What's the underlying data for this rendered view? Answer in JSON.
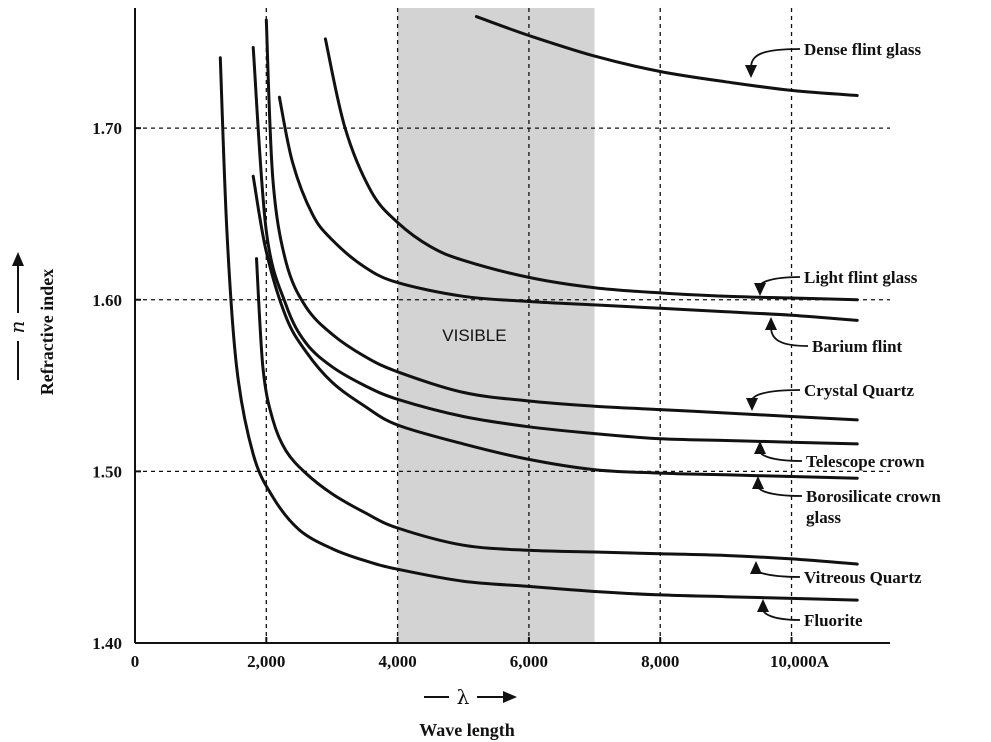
{
  "chart_data": {
    "type": "line",
    "xlabel": "Wave length",
    "xsymbol": "λ",
    "ylabel": "Refractive index",
    "ysymbol": "n",
    "xlim": [
      0,
      11500
    ],
    "ylim": [
      1.4,
      1.77
    ],
    "xticks": [
      {
        "value": 0,
        "label": "0"
      },
      {
        "value": 2000,
        "label": "2,000"
      },
      {
        "value": 4000,
        "label": "4,000"
      },
      {
        "value": 6000,
        "label": "6,000"
      },
      {
        "value": 8000,
        "label": "8,000"
      },
      {
        "value": 10000,
        "label": "10,000A"
      }
    ],
    "yticks": [
      {
        "value": 1.4,
        "label": "1.40"
      },
      {
        "value": 1.5,
        "label": "1.50"
      },
      {
        "value": 1.6,
        "label": "1.60"
      },
      {
        "value": 1.7,
        "label": "1.70"
      }
    ],
    "grid_x": [
      2000,
      4000,
      6000,
      8000,
      10000
    ],
    "grid_y": [
      1.5,
      1.6,
      1.7
    ],
    "visible_band": {
      "label": "VISIBLE",
      "from": 4000,
      "to": 7000,
      "color": "#d3d3d3"
    },
    "series": [
      {
        "name": "Dense flint glass",
        "x": [
          5200,
          6000,
          7000,
          8000,
          9000,
          10000,
          11000
        ],
        "y": [
          1.765,
          1.754,
          1.742,
          1.733,
          1.727,
          1.722,
          1.719
        ]
      },
      {
        "name": "Light flint glass",
        "x": [
          2900,
          3200,
          3600,
          4000,
          4500,
          5000,
          6000,
          7000,
          8000,
          9000,
          10000,
          11000
        ],
        "y": [
          1.752,
          1.7,
          1.663,
          1.645,
          1.631,
          1.623,
          1.613,
          1.607,
          1.604,
          1.602,
          1.601,
          1.6
        ]
      },
      {
        "name": "Barium flint",
        "x": [
          2200,
          2400,
          2700,
          3000,
          3500,
          4000,
          5000,
          6000,
          7000,
          8000,
          9000,
          10000,
          11000
        ],
        "y": [
          1.718,
          1.68,
          1.65,
          1.635,
          1.619,
          1.61,
          1.602,
          1.599,
          1.597,
          1.595,
          1.593,
          1.591,
          1.588
        ]
      },
      {
        "name": "Crystal Quartz",
        "x": [
          2000,
          2100,
          2300,
          2600,
          3000,
          3500,
          4000,
          5000,
          6000,
          7000,
          8000,
          9000,
          10000,
          11000
        ],
        "y": [
          1.763,
          1.67,
          1.622,
          1.596,
          1.58,
          1.567,
          1.558,
          1.546,
          1.541,
          1.538,
          1.536,
          1.534,
          1.532,
          1.53
        ]
      },
      {
        "name": "Telescope crown",
        "x": [
          1800,
          2000,
          2300,
          2600,
          3000,
          3500,
          4000,
          5000,
          6000,
          7000,
          8000,
          9000,
          10000,
          11000
        ],
        "y": [
          1.747,
          1.64,
          1.597,
          1.575,
          1.561,
          1.55,
          1.542,
          1.532,
          1.526,
          1.522,
          1.519,
          1.518,
          1.517,
          1.516
        ]
      },
      {
        "name": "Borosilicate crown glass",
        "x": [
          1800,
          2000,
          2300,
          2600,
          3000,
          3500,
          4000,
          5000,
          6000,
          7000,
          8000,
          9000,
          10000,
          11000
        ],
        "y": [
          1.672,
          1.628,
          1.59,
          1.57,
          1.552,
          1.538,
          1.527,
          1.516,
          1.507,
          1.501,
          1.499,
          1.498,
          1.497,
          1.496
        ]
      },
      {
        "name": "Vitreous Quartz",
        "x": [
          1850,
          1950,
          2100,
          2300,
          2600,
          3000,
          3500,
          4000,
          5000,
          6000,
          7000,
          8000,
          9000,
          10000,
          11000
        ],
        "y": [
          1.624,
          1.56,
          1.53,
          1.512,
          1.499,
          1.487,
          1.476,
          1.467,
          1.457,
          1.454,
          1.453,
          1.452,
          1.451,
          1.449,
          1.446
        ]
      },
      {
        "name": "Fluorite",
        "x": [
          1300,
          1400,
          1550,
          1800,
          2100,
          2500,
          3000,
          3500,
          4000,
          5000,
          6000,
          7000,
          8000,
          9000,
          10000,
          11000
        ],
        "y": [
          1.741,
          1.64,
          1.56,
          1.51,
          1.485,
          1.466,
          1.455,
          1.448,
          1.443,
          1.436,
          1.433,
          1.43,
          1.428,
          1.427,
          1.426,
          1.425
        ]
      }
    ]
  }
}
